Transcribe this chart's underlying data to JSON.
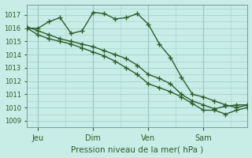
{
  "bg_color": "#c8ece6",
  "grid_color": "#a0d4cc",
  "line_color": "#2d5e2d",
  "ylim": [
    1008.5,
    1017.8
  ],
  "yticks": [
    1009,
    1010,
    1011,
    1012,
    1013,
    1014,
    1015,
    1016,
    1017
  ],
  "xlabel": "Pression niveau de la mer( hPa )",
  "xtick_labels": [
    "Jeu",
    "Dim",
    "Ven",
    "Sam"
  ],
  "xtick_positions": [
    1,
    6,
    11,
    16
  ],
  "vlines": [
    1,
    6,
    11,
    16
  ],
  "line1_x": [
    0,
    1,
    2,
    3,
    4,
    5,
    6,
    7,
    8,
    9,
    10,
    11,
    12,
    13,
    14,
    15,
    16,
    17,
    18,
    19,
    20
  ],
  "line1_y": [
    1016.0,
    1016.0,
    1016.5,
    1016.8,
    1015.6,
    1015.8,
    1017.2,
    1017.1,
    1016.7,
    1016.8,
    1017.1,
    1016.3,
    1014.8,
    1013.8,
    1012.3,
    1011.0,
    1010.8,
    1010.5,
    1010.2,
    1010.0,
    1010.2
  ],
  "line2_x": [
    0,
    1,
    2,
    3,
    4,
    5,
    6,
    7,
    8,
    9,
    10,
    11,
    12,
    13,
    14,
    15,
    16,
    17,
    18,
    19,
    20
  ],
  "line2_y": [
    1016.1,
    1015.8,
    1015.5,
    1015.2,
    1015.0,
    1014.8,
    1014.6,
    1014.3,
    1014.0,
    1013.7,
    1013.2,
    1012.5,
    1012.2,
    1011.8,
    1011.0,
    1010.5,
    1010.2,
    1009.9,
    1010.1,
    1010.2,
    1010.2
  ],
  "line3_x": [
    0,
    1,
    2,
    3,
    4,
    5,
    6,
    7,
    8,
    9,
    10,
    11,
    12,
    13,
    14,
    15,
    16,
    17,
    18,
    19,
    20
  ],
  "line3_y": [
    1016.0,
    1015.5,
    1015.2,
    1015.0,
    1014.8,
    1014.5,
    1014.2,
    1013.9,
    1013.5,
    1013.0,
    1012.5,
    1011.8,
    1011.5,
    1011.2,
    1010.8,
    1010.3,
    1009.8,
    1009.8,
    1009.5,
    1009.8,
    1010.0
  ],
  "xlim": [
    0,
    20
  ],
  "marker_size": 4
}
